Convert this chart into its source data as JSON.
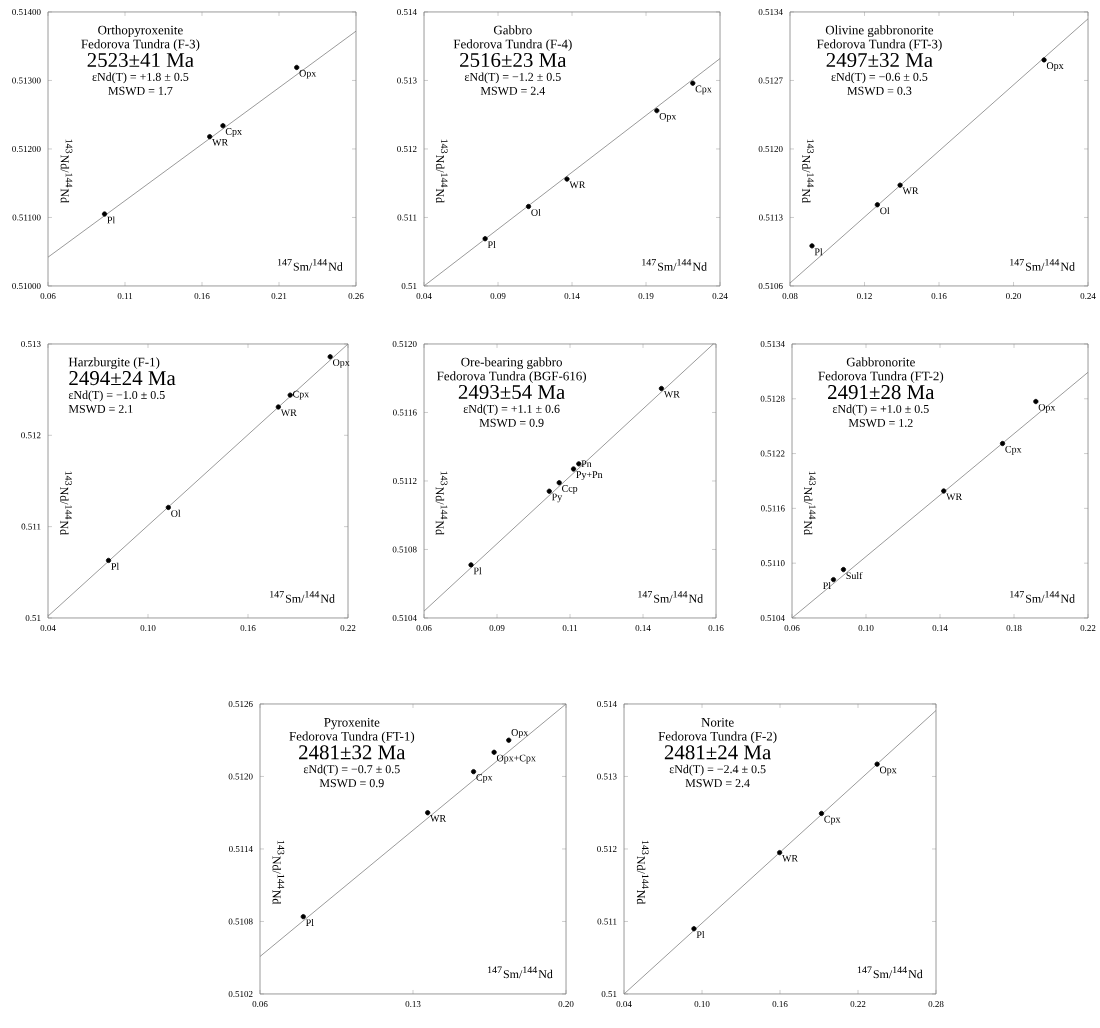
{
  "chart_data": [
    {
      "type": "scatter",
      "title": "Orthopyroxenite",
      "subtitle": "Fedorova Tundra (F-3)",
      "xlabel": "$^{147}$Sm/$^{144}$Nd",
      "ylabel": "$^{143}$Nd/$^{144}$Nd",
      "marker": "circle",
      "xlim": [
        0.06,
        0.26
      ],
      "xticks": [
        0.06,
        0.11,
        0.16,
        0.21,
        0.26
      ],
      "ylim": [
        0.51,
        0.514
      ],
      "yticks": [
        {
          "value": 0.51,
          "label": "0.51000"
        },
        {
          "value": 0.511,
          "label": "0.51100"
        },
        {
          "value": 0.512,
          "label": "0.51200"
        },
        {
          "value": 0.513,
          "label": "0.51300"
        },
        {
          "value": 0.514,
          "label": "0.51400"
        }
      ],
      "series": [
        {
          "color": "#000000",
          "x": [
            0.0967,
            0.165,
            0.1736,
            0.2215
          ],
          "values": [
            0.51105,
            0.51218,
            0.51234,
            0.51319
          ]
        },
        {
          "type": "line",
          "color": "#808080",
          "marker": "none",
          "x": [
            0.06,
            0.26
          ],
          "values": [
            0.51042,
            0.51372
          ]
        }
      ],
      "annotations": [
        "2523±41 Ma",
        "εNd(T) = +1.8 ± 0.5",
        "MSWD = 1.7",
        {
          "text": "Pl",
          "x": 0.0967,
          "y": 0.51105
        },
        {
          "text": "WR",
          "x": 0.165,
          "y": 0.51218
        },
        {
          "text": "Cpx",
          "x": 0.1736,
          "y": 0.51234
        },
        {
          "text": "Opx",
          "x": 0.2215,
          "y": 0.51319
        }
      ]
    },
    {
      "type": "scatter",
      "title": "Gabbro",
      "subtitle": "Fedorova Tundra (F-4)",
      "xlabel": "$^{147}$Sm/$^{144}$Nd",
      "ylabel": "$^{143}$Nd/$^{144}$Nd",
      "marker": "circle",
      "xlim": [
        0.04,
        0.24
      ],
      "xticks": [
        0.04,
        0.09,
        0.14,
        0.19,
        0.24
      ],
      "ylim": [
        0.51,
        0.514
      ],
      "yticks": [
        0.51,
        0.511,
        0.512,
        0.513,
        0.514
      ],
      "series": [
        {
          "color": "#000000",
          "x": [
            0.0813,
            0.1106,
            0.1366,
            0.1973,
            0.2216
          ],
          "values": [
            0.51069,
            0.51116,
            0.51156,
            0.51256,
            0.51296
          ]
        },
        {
          "type": "line",
          "color": "#808080",
          "marker": "none",
          "x": [
            0.04,
            0.24
          ],
          "values": [
            0.51,
            0.51332
          ]
        }
      ],
      "annotations": [
        "2516±23 Ma",
        "εNd(T) = −1.2 ± 0.5",
        "MSWD = 2.4",
        {
          "text": "Pl",
          "x": 0.0813,
          "y": 0.51069
        },
        {
          "text": "Ol",
          "x": 0.1106,
          "y": 0.51116
        },
        {
          "text": "WR",
          "x": 0.1366,
          "y": 0.51156
        },
        {
          "text": "Opx",
          "x": 0.1973,
          "y": 0.51256
        },
        {
          "text": "Cpx",
          "x": 0.2216,
          "y": 0.51296
        }
      ]
    },
    {
      "type": "scatter",
      "title": "Olivine gabbronorite",
      "subtitle": "Fedorova Tundra (FT-3)",
      "xlabel": "$^{147}$Sm/$^{144}$Nd",
      "ylabel": "$^{143}$Nd/$^{144}$Nd",
      "marker": "circle",
      "xlim": [
        0.08,
        0.24
      ],
      "xticks": [
        0.08,
        0.12,
        0.16,
        {
          "value": 0.2,
          "label": "0.20"
        },
        0.24
      ],
      "ylim": [
        0.5106,
        0.5134
      ],
      "yticks": [
        0.5106,
        0.5113,
        {
          "value": 0.512,
          "label": "0.5120"
        },
        0.5127,
        0.5134
      ],
      "series": [
        {
          "color": "#000000",
          "x": [
            0.0918,
            0.1269,
            0.1391,
            0.2164
          ],
          "values": [
            0.51101,
            0.51143,
            0.51163,
            0.51291
          ]
        },
        {
          "type": "line",
          "color": "#808080",
          "marker": "none",
          "x": [
            0.08,
            0.24
          ],
          "values": [
            0.51063,
            0.51333
          ]
        }
      ],
      "annotations": [
        "2497±32 Ma",
        "εNd(T) = −0.6 ± 0.5",
        "MSWD = 0.3",
        {
          "text": "Pl",
          "x": 0.0918,
          "y": 0.51101
        },
        {
          "text": "Ol",
          "x": 0.1269,
          "y": 0.51143
        },
        {
          "text": "WR",
          "x": 0.1391,
          "y": 0.51163
        },
        {
          "text": "Opx",
          "x": 0.2164,
          "y": 0.51291
        }
      ]
    },
    {
      "type": "scatter",
      "title": "Harzburgite (F-1)",
      "xlabel": "$^{147}$Sm/$^{144}$Nd",
      "ylabel": "$^{143}$Nd/$^{144}$Nd",
      "marker": "circle",
      "xlim": [
        0.04,
        0.22
      ],
      "xticks": [
        0.04,
        {
          "value": 0.1,
          "label": "0.10"
        },
        0.16,
        0.22
      ],
      "ylim": [
        0.51,
        0.513
      ],
      "yticks": [
        0.51,
        0.511,
        0.512,
        0.513
      ],
      "series": [
        {
          "color": "#000000",
          "x": [
            0.0763,
            0.1122,
            0.1782,
            0.1853,
            0.2093
          ],
          "values": [
            0.51063,
            0.51121,
            0.51231,
            0.51244,
            0.51286
          ]
        },
        {
          "type": "line",
          "color": "#808080",
          "marker": "none",
          "x": [
            0.04,
            0.22
          ],
          "values": [
            0.51002,
            0.513
          ]
        }
      ],
      "annotations": [
        "2494±24 Ma",
        "εNd(T) = −1.0 ± 0.5",
        "MSWD = 2.1",
        {
          "text": "Pl",
          "x": 0.0763,
          "y": 0.51063
        },
        {
          "text": "Ol",
          "x": 0.1122,
          "y": 0.51121
        },
        {
          "text": "WR",
          "x": 0.1782,
          "y": 0.51231
        },
        {
          "text": "Cpx",
          "x": 0.1853,
          "y": 0.51244
        },
        {
          "text": "Opx",
          "x": 0.2093,
          "y": 0.51286
        }
      ]
    },
    {
      "type": "scatter",
      "title": "Ore-bearing gabbro",
      "subtitle": "Fedorova Tundra (BGF-616)",
      "xlabel": "$^{147}$Sm/$^{144}$Nd",
      "ylabel": "$^{143}$Nd/$^{144}$Nd",
      "marker": "circle",
      "xlim": [
        0.06,
        0.16
      ],
      "xticks": [
        0.06,
        {
          "value": 0.085,
          "label": "0.09"
        },
        0.11,
        {
          "value": 0.135,
          "label": "0.14"
        },
        0.16
      ],
      "ylim": [
        0.5104,
        0.512
      ],
      "yticks": [
        0.5104,
        0.5108,
        0.5112,
        0.5116,
        {
          "value": 0.512,
          "label": "0.5120"
        }
      ],
      "series": [
        {
          "color": "#000000",
          "x": [
            0.0761,
            0.1029,
            0.1063,
            0.1112,
            0.113,
            0.1413
          ],
          "values": [
            0.51071,
            0.51114,
            0.51119,
            0.51127,
            0.5113,
            0.51174
          ]
        },
        {
          "type": "line",
          "color": "#808080",
          "marker": "none",
          "x": [
            0.06,
            0.1591
          ],
          "values": [
            0.51044,
            0.512
          ]
        }
      ],
      "annotations": [
        "2493±54 Ma",
        "εNd(T) = +1.1 ± 0.6",
        "MSWD = 0.9",
        {
          "text": "Pl",
          "x": 0.0761,
          "y": 0.51071
        },
        {
          "text": "Py",
          "x": 0.1029,
          "y": 0.51114
        },
        {
          "text": "Ccp",
          "x": 0.1063,
          "y": 0.51119
        },
        {
          "text": "Py+Pn",
          "x": 0.1112,
          "y": 0.51127
        },
        {
          "text": "Pn",
          "x": 0.113,
          "y": 0.5113
        },
        {
          "text": "WR",
          "x": 0.1413,
          "y": 0.51174
        }
      ]
    },
    {
      "type": "scatter",
      "title": "Gabbronorite",
      "subtitle": "Fedorova Tundra (FT-2)",
      "xlabel": "$^{147}$Sm/$^{144}$Nd",
      "ylabel": "$^{143}$Nd/$^{144}$Nd",
      "marker": "circle",
      "xlim": [
        0.06,
        0.22
      ],
      "xticks": [
        0.06,
        {
          "value": 0.1,
          "label": "0.10"
        },
        0.14,
        0.18,
        0.22
      ],
      "ylim": [
        0.5104,
        0.5134
      ],
      "yticks": [
        0.5104,
        {
          "value": 0.511,
          "label": "0.5110"
        },
        0.5116,
        0.5122,
        0.5128,
        0.5134
      ],
      "series": [
        {
          "color": "#000000",
          "x": [
            0.0824,
            0.0878,
            0.142,
            0.1738,
            0.1918
          ],
          "values": [
            0.51082,
            0.51093,
            0.51179,
            0.51231,
            0.51277
          ]
        },
        {
          "type": "line",
          "color": "#808080",
          "marker": "none",
          "x": [
            0.06,
            0.22
          ],
          "values": [
            0.5104,
            0.51309
          ]
        }
      ],
      "annotations": [
        "2491±28 Ma",
        "εNd(T) = +1.0 ± 0.5",
        "MSWD = 1.2",
        {
          "text": "Pl",
          "x": 0.0824,
          "y": 0.51082
        },
        {
          "text": "Sulf",
          "x": 0.0878,
          "y": 0.51093
        },
        {
          "text": "WR",
          "x": 0.142,
          "y": 0.51179
        },
        {
          "text": "Cpx",
          "x": 0.1738,
          "y": 0.51231
        },
        {
          "text": "Opx",
          "x": 0.1918,
          "y": 0.51277
        }
      ]
    },
    {
      "type": "scatter",
      "title": "Pyroxenite",
      "subtitle": "Fedorova Tundra (FT-1)",
      "xlabel": "$^{147}$Sm/$^{144}$Nd",
      "ylabel": "$^{143}$Nd/$^{144}$Nd",
      "marker": "circle",
      "xlim": [
        0.06,
        0.2
      ],
      "xticks": [
        0.06,
        0.13,
        {
          "value": 0.2,
          "label": "0.20"
        }
      ],
      "ylim": [
        0.5102,
        0.5126
      ],
      "yticks": [
        0.5102,
        0.5108,
        0.5114,
        {
          "value": 0.512,
          "label": "0.5120"
        },
        0.5126
      ],
      "series": [
        {
          "color": "#000000",
          "x": [
            0.0798,
            0.1367,
            0.1577,
            0.1671,
            0.1738
          ],
          "values": [
            0.51084,
            0.5117,
            0.51204,
            0.5122,
            0.5123
          ]
        },
        {
          "type": "line",
          "color": "#808080",
          "marker": "none",
          "x": [
            0.06,
            0.2
          ],
          "values": [
            0.51051,
            0.5126
          ]
        }
      ],
      "annotations": [
        "2481±32 Ma",
        "εNd(T) = −0.7 ± 0.5",
        "MSWD = 0.9",
        {
          "text": "Pl",
          "x": 0.0798,
          "y": 0.51084
        },
        {
          "text": "WR",
          "x": 0.1367,
          "y": 0.5117
        },
        {
          "text": "Cpx",
          "x": 0.1577,
          "y": 0.51204
        },
        {
          "text": "Opx+Cpx",
          "x": 0.1671,
          "y": 0.5122
        },
        {
          "text": "Opx",
          "x": 0.1738,
          "y": 0.5123
        }
      ]
    },
    {
      "type": "scatter",
      "title": "Norite",
      "subtitle": "Fedorova Tundra (F-2)",
      "xlabel": "$^{147}$Sm/$^{144}$Nd",
      "ylabel": "$^{143}$Nd/$^{144}$Nd",
      "marker": "circle",
      "xlim": [
        0.04,
        0.28
      ],
      "xticks": [
        0.04,
        {
          "value": 0.1,
          "label": "0.10"
        },
        0.16,
        0.22,
        0.28
      ],
      "ylim": [
        0.51,
        0.514
      ],
      "yticks": [
        0.51,
        0.511,
        0.512,
        0.513,
        0.514
      ],
      "series": [
        {
          "color": "#000000",
          "x": [
            0.0938,
            0.1597,
            0.1919,
            0.2347
          ],
          "values": [
            0.5109,
            0.51195,
            0.51249,
            0.51317
          ]
        },
        {
          "type": "line",
          "color": "#808080",
          "marker": "none",
          "x": [
            0.04,
            0.28
          ],
          "values": [
            0.51,
            0.51391
          ]
        }
      ],
      "annotations": [
        "2481±24 Ma",
        "εNd(T) = −2.4 ± 0.5",
        "MSWD = 2.4",
        {
          "text": "Pl",
          "x": 0.0938,
          "y": 0.5109
        },
        {
          "text": "WR",
          "x": 0.1597,
          "y": 0.51195
        },
        {
          "text": "Cpx",
          "x": 0.1919,
          "y": 0.51249
        },
        {
          "text": "Opx",
          "x": 0.2347,
          "y": 0.51317
        }
      ]
    }
  ]
}
